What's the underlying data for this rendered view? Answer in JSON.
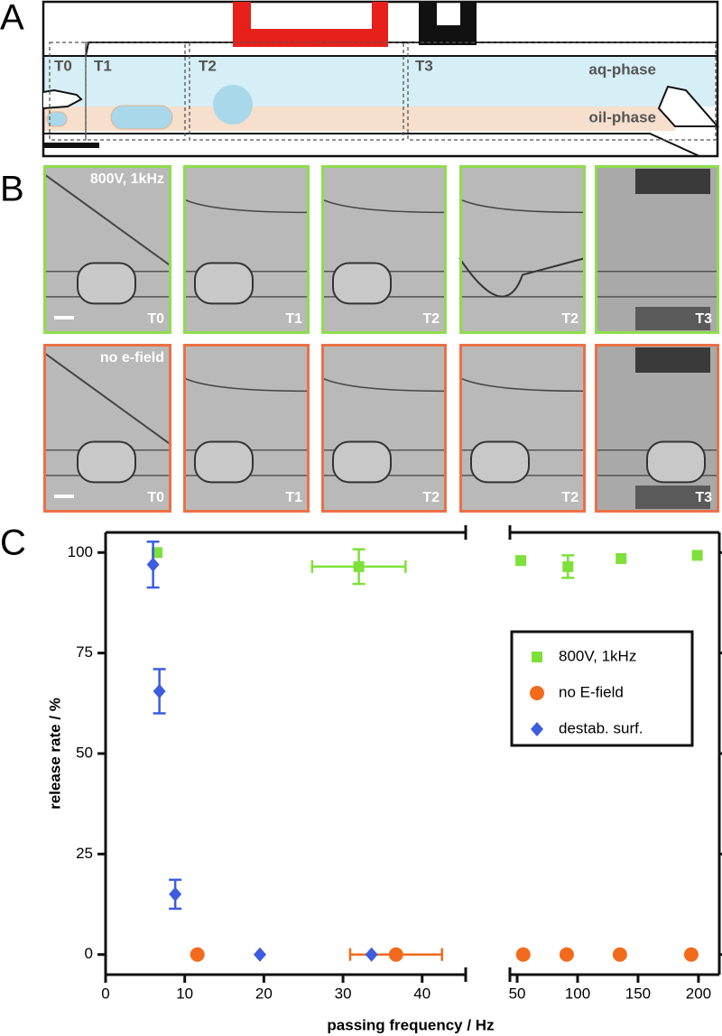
{
  "panel_labels": [
    "A",
    "B",
    "C"
  ],
  "schematic": {
    "zones": [
      "T0",
      "T1",
      "T2",
      "T3"
    ],
    "phases": [
      "aq-phase",
      "oil-phase"
    ]
  },
  "micrographs": {
    "rows": [
      {
        "condition": "800V, 1kHz",
        "color": "#8fdc4e",
        "tiles": [
          "T0",
          "T1",
          "T2",
          "T2",
          "T3"
        ]
      },
      {
        "condition": "no e-field",
        "color": "#ec7046",
        "tiles": [
          "T0",
          "T1",
          "T2",
          "T2",
          "T3"
        ]
      }
    ]
  },
  "chart_data": {
    "type": "scatter",
    "xlabel": "passing frequency / Hz",
    "ylabel": "release rate / %",
    "xlim_segments": [
      [
        0,
        45.5
      ],
      [
        44,
        212
      ]
    ],
    "xticks": [
      0,
      10,
      20,
      30,
      40,
      50,
      100,
      150,
      200
    ],
    "ylim": [
      -5,
      105
    ],
    "yticks": [
      0,
      25,
      50,
      75,
      100
    ],
    "legend": "right",
    "series": [
      {
        "name": "800V, 1kHz",
        "color": "#7ee03a",
        "marker": "square",
        "x": [
          6.5,
          32,
          53,
          92,
          136,
          199
        ],
        "values": [
          100,
          96.5,
          98,
          96.5,
          98.5,
          99.3
        ],
        "xerr": [
          null,
          5.9,
          null,
          null,
          null,
          null
        ],
        "yerr": [
          null,
          4.3,
          null,
          2.8,
          null,
          null
        ]
      },
      {
        "name": "no E-field",
        "color": "#f26a1b",
        "marker": "circle",
        "x": [
          11.6,
          36.7,
          55,
          91,
          135,
          194
        ],
        "values": [
          0,
          0,
          0,
          0,
          0,
          0
        ],
        "xerr": [
          null,
          5.8,
          null,
          null,
          null,
          null
        ],
        "yerr": [
          null,
          null,
          null,
          null,
          null,
          null
        ]
      },
      {
        "name": "destab. surf.",
        "color": "#3d5ce0",
        "marker": "diamond",
        "x": [
          6.0,
          6.8,
          8.8,
          19.5,
          33.6
        ],
        "values": [
          97,
          65.5,
          15,
          0,
          0
        ],
        "xerr": [
          null,
          null,
          null,
          null,
          null
        ],
        "yerr": [
          5.7,
          5.5,
          3.6,
          null,
          null
        ]
      }
    ]
  }
}
